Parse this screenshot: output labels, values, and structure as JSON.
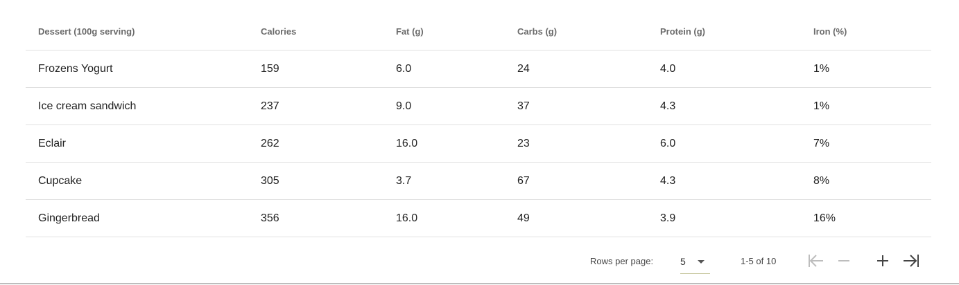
{
  "table": {
    "headers": [
      "Dessert (100g serving)",
      "Calories",
      "Fat (g)",
      "Carbs (g)",
      "Protein (g)",
      "Iron (%)"
    ],
    "rows": [
      [
        "Frozens Yogurt",
        "159",
        "6.0",
        "24",
        "4.0",
        "1%"
      ],
      [
        "Ice cream sandwich",
        "237",
        "9.0",
        "37",
        "4.3",
        "1%"
      ],
      [
        "Eclair",
        "262",
        "16.0",
        "23",
        "6.0",
        "7%"
      ],
      [
        "Cupcake",
        "305",
        "3.7",
        "67",
        "4.3",
        "8%"
      ],
      [
        "Gingerbread",
        "356",
        "16.0",
        "49",
        "3.9",
        "16%"
      ]
    ]
  },
  "pagination": {
    "rows_per_page_label": "Rows per page:",
    "rows_per_page_value": "5",
    "range_label": "1-5 of 10",
    "buttons": [
      {
        "icon": "first-page-icon",
        "enabled": false
      },
      {
        "icon": "minus-icon",
        "enabled": false
      },
      {
        "icon": "plus-icon",
        "enabled": true
      },
      {
        "icon": "last-page-icon",
        "enabled": true
      }
    ]
  },
  "colors": {
    "disabled_icon": "#bdbdbd",
    "enabled_icon": "#444444",
    "divider": "#e0e0e0"
  }
}
